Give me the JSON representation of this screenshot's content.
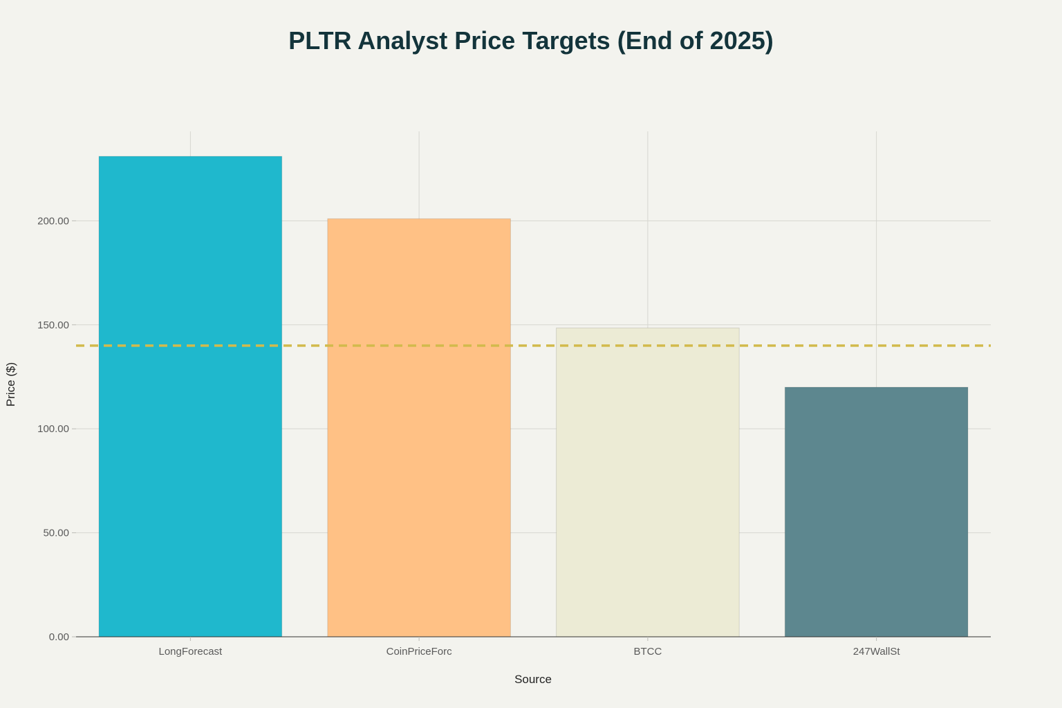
{
  "chart_data": {
    "type": "bar",
    "title": "PLTR Analyst Price Targets (End of 2025)",
    "xlabel": "Source",
    "ylabel": "Price ($)",
    "categories": [
      "LongForecast",
      "CoinPriceForc",
      "BTCC",
      "247WallSt"
    ],
    "values": [
      231,
      201,
      148.5,
      120
    ],
    "colors": [
      "#1fb8cd",
      "#ffc185",
      "#eceBd5",
      "#5d878f"
    ],
    "reference_line": {
      "value": 140,
      "style": "dashed",
      "color": "#d2ba4c"
    },
    "ylim": [
      0,
      243
    ],
    "yticks": [
      0,
      50,
      100,
      150,
      200
    ],
    "ytick_labels": [
      "0.00",
      "50.00",
      "100.00",
      "150.00",
      "200.00"
    ],
    "grid": true,
    "legend": "none"
  }
}
